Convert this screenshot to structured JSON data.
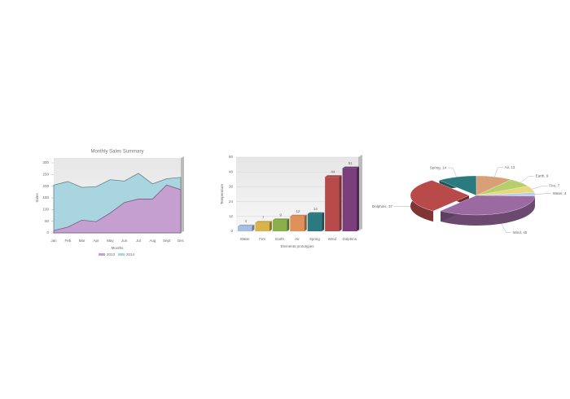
{
  "chart_data": [
    {
      "type": "area",
      "title": "Monthly Sales Summary",
      "x_label": "Months",
      "y_label": "Sales",
      "categories": [
        "Jan",
        "Feb",
        "Mar",
        "Apr",
        "May",
        "Jun",
        "Jul",
        "Aug",
        "Sept",
        "Dec"
      ],
      "series": [
        {
          "name": "2013",
          "color": "#c49fd0",
          "values": [
            10,
            25,
            55,
            48,
            85,
            130,
            145,
            145,
            205,
            185
          ]
        },
        {
          "name": "2014",
          "color": "#a9d5e0",
          "values": [
            205,
            220,
            195,
            198,
            228,
            222,
            255,
            210,
            232,
            238
          ]
        }
      ],
      "ylim": [
        0,
        300
      ],
      "yticks": [
        0,
        50,
        100,
        150,
        200,
        250,
        300
      ],
      "legend": "bottom"
    },
    {
      "type": "bar",
      "x_label": "Elements prototypes",
      "y_label": "Temperature",
      "categories": [
        "Water",
        "Fire",
        "Earth",
        "Air",
        "Spring",
        "Wind",
        "Dolphins"
      ],
      "values": [
        4,
        7,
        9,
        12,
        14,
        44,
        51
      ],
      "colors": [
        "#a8bfe0",
        "#d9b44a",
        "#8bb04a",
        "#e0915a",
        "#2a7a80",
        "#b84a4a",
        "#7a3f7a"
      ],
      "ylim": [
        0,
        60
      ],
      "yticks": [
        0,
        12,
        24,
        36,
        48,
        60
      ]
    },
    {
      "type": "pie",
      "categories": [
        "Water",
        "Fire",
        "Earth",
        "Air",
        "Spring",
        "Dolphins",
        "Wind"
      ],
      "values": [
        4,
        7,
        9,
        13,
        14,
        37,
        45
      ],
      "value_labels": [
        "Water, 4",
        "Fire, 7",
        "Earth, 9",
        "Air, 13",
        "Spring, 14",
        "Dolphins, 37",
        "Wind, 45"
      ],
      "colors": [
        "#b8d0e8",
        "#ead77a",
        "#b5cf6b",
        "#d9a078",
        "#2a7a80",
        "#b84a4a",
        "#9a6aa0"
      ],
      "explode": "Dolphins"
    }
  ]
}
